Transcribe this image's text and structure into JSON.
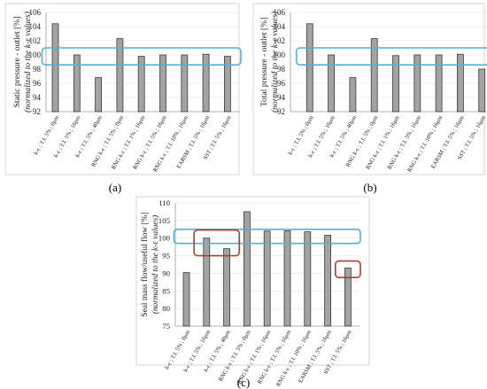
{
  "chart_data": [
    {
      "type": "bar",
      "panel_label": "(a)",
      "ylabel": "Static pressure - outlet [%]",
      "ylabel_sub": "(normalized to the k-ε values)",
      "ylim": [
        92,
        106
      ],
      "yticks": [
        92,
        94,
        96,
        98,
        100,
        102,
        104,
        106
      ],
      "categories": [
        "k-ε ; T.I. 5% ; 0μm",
        "k-ε ; T.I. 5% ; 16μm",
        "k-ε ; T.I. 5% ; 40μm",
        "RNG k-ε ; T.I. 5% ; 0μm",
        "RNG k-ε ; T.I. 1% ; 16μm",
        "RNG k-ε ; T.I. 5% ; 16μm",
        "RNG k-ε ; T.I. 10% ; 16μm",
        "EARSM ; T.I. 5% ; 16μm",
        "SST ; T.I. 5% ; 16μm"
      ],
      "values": [
        104.4,
        100.0,
        96.8,
        102.3,
        99.8,
        100.0,
        100.0,
        100.1,
        99.8
      ],
      "highlights": [
        {
          "color": "#4fb3d9",
          "from_index": 0,
          "to_index": 8,
          "y_range": [
            98.6,
            101.0
          ]
        }
      ]
    },
    {
      "type": "bar",
      "panel_label": "(b)",
      "ylabel": "Total pressure - outlet [%]",
      "ylabel_sub": "(normalized to the k-ε values)",
      "ylim": [
        92,
        106
      ],
      "yticks": [
        92,
        94,
        96,
        98,
        100,
        102,
        104,
        106
      ],
      "categories": [
        "k-ε ; T.I. 5% ; 0μm",
        "k-ε ; T.I. 5% ; 16μm",
        "k-ε ; T.I. 5% ; 40μm",
        "RNG k-ε ; T.I. 5% ; 0μm",
        "RNG k-ε ; T.I. 1% ; 16μm",
        "RNG k-ε ; T.I. 5% ; 16μm",
        "RNG k-ε ; T.I. 10% ; 16μm",
        "EARSM ; T.I. 5% ; 16μm",
        "SST ; T.I. 5% ; 16μm"
      ],
      "values": [
        104.4,
        100.0,
        96.8,
        102.3,
        99.9,
        100.0,
        100.0,
        100.1,
        98.0
      ],
      "highlights": [
        {
          "color": "#4fb3d9",
          "from_index": 0,
          "to_index": 8,
          "y_range": [
            98.6,
            101.0
          ]
        }
      ]
    },
    {
      "type": "bar",
      "panel_label": "(c)",
      "ylabel": "Seal mass flow/useful flow [%]",
      "ylabel_sub": "(normalized to the k-ε values)",
      "ylim": [
        75,
        110
      ],
      "yticks": [
        75,
        80,
        85,
        90,
        95,
        100,
        105,
        110
      ],
      "categories": [
        "k-ε ; T.I. 5% ; 0μm",
        "k-ε ; T.I. 5% ; 16μm",
        "k-ε ; T.I. 5% ; 40μm",
        "RNG k-ε ; T.I. 5% ; 0μm",
        "RNG k-ε ; T.I. 1% ; 16μm",
        "RNG k-ε ; T.I. 5% ; 16μm",
        "RNG k-ε ; T.I. 10% ; 16μm",
        "EARSM ; T.I. 5% ; 16μm",
        "SST ; T.I. 5% ; 16μm"
      ],
      "values": [
        90.2,
        100.0,
        97.0,
        107.5,
        102.0,
        102.1,
        101.8,
        100.8,
        91.5
      ],
      "highlights": [
        {
          "color": "#4fb3d9",
          "from_index": 0,
          "to_index": 8,
          "y_range": [
            98.5,
            102.5
          ]
        },
        {
          "color": "#a8412e",
          "from_index": 1,
          "to_index": 2,
          "y_range": [
            95.0,
            102.3
          ]
        },
        {
          "color": "#a8412e",
          "from_index": 8,
          "to_index": 8,
          "y_range": [
            88.8,
            93.5
          ]
        }
      ]
    }
  ]
}
